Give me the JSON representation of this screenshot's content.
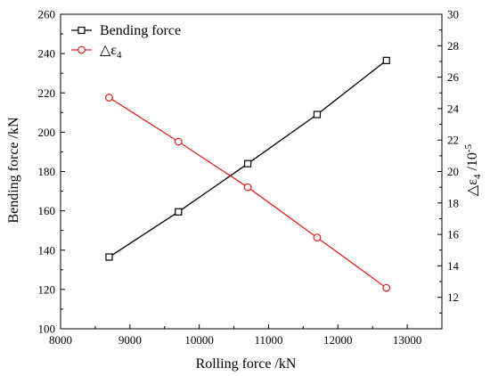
{
  "chart_data": {
    "type": "line",
    "title": "",
    "xlabel": "Rolling force /kN",
    "ylabel": "Bending force /kN",
    "ylabel_right_prefix": "△ε",
    "ylabel_right_sub": "4",
    "ylabel_right_mid": " /10",
    "ylabel_right_sup": "-5",
    "xlim": [
      8000,
      13500
    ],
    "ylim": [
      100,
      260
    ],
    "ylim_right": [
      10,
      30
    ],
    "xticks": [
      8000,
      9000,
      10000,
      11000,
      12000,
      13000
    ],
    "yticks": [
      100,
      120,
      140,
      160,
      180,
      200,
      220,
      240,
      260
    ],
    "yticks_right": [
      12,
      14,
      16,
      18,
      20,
      22,
      24,
      26,
      28,
      30
    ],
    "grid": false,
    "legend_position": "top-left",
    "x": [
      8700,
      9700,
      10700,
      11700,
      12700
    ],
    "series": [
      {
        "name": "Bending force",
        "axis": "left",
        "color": "#000000",
        "marker": "square",
        "values": [
          136.5,
          159.5,
          184,
          209,
          236.5
        ]
      },
      {
        "name_prefix": "△ε",
        "name_sub": "4",
        "axis": "right",
        "color": "#e02020",
        "marker": "circle",
        "values": [
          24.7,
          21.9,
          19.0,
          15.8,
          12.6
        ]
      }
    ]
  }
}
